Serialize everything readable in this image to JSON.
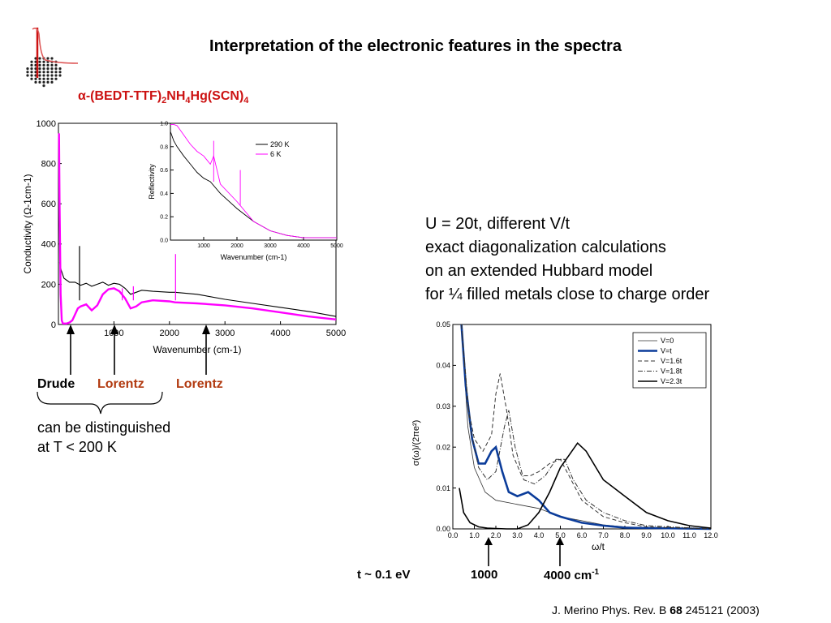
{
  "header": {
    "title": "Interpretation of the electronic features in the spectra",
    "compound": {
      "alpha": "α",
      "p1": "-(BEDT-TTF)",
      "s1": "2",
      "p2": "NH",
      "s2": "4",
      "p3": "Hg(SCN)",
      "s3": "4"
    }
  },
  "colors": {
    "title": "#000000",
    "compound": "#cc1111",
    "lorentz": "#b23a10",
    "low_temp": "#ff00ff",
    "room_temp": "#000000",
    "v_t": "#0b3c9a"
  },
  "description": {
    "line1": "U = 20t, different V/t",
    "line2": "exact diagonalization calculations",
    "line3": "on an extended Hubbard model",
    "line4": "for ¼ filled metals close to charge order"
  },
  "labels": {
    "drude": "Drude",
    "lorentz1": "Lorentz",
    "lorentz2": "Lorentz",
    "distinguish1": "can be distinguished",
    "distinguish2": "at T < 200 K",
    "t_energy": "t ~ 0.1 eV",
    "mark_1000": "1000",
    "mark_4000": "4000 cm",
    "mark_4000_sup": "-1"
  },
  "citation": {
    "pre": "J. Merino Phys. Rev. B ",
    "vol": "68",
    "post": " 245121 (2003)"
  },
  "chart_data": [
    {
      "type": "line",
      "id": "conductivity",
      "xlabel": "Wavenumber (cm-1)",
      "ylabel": "Conductivity (Ω-1cm-1)",
      "xlim": [
        0,
        5000
      ],
      "ylim": [
        0,
        1000
      ],
      "xticks": [
        1000,
        2000,
        3000,
        4000,
        5000
      ],
      "yticks": [
        0,
        200,
        400,
        600,
        800,
        1000
      ],
      "series": [
        {
          "name": "290 K",
          "color": "#000000",
          "x": [
            20,
            50,
            100,
            200,
            300,
            400,
            500,
            600,
            700,
            800,
            900,
            1000,
            1100,
            1200,
            1300,
            1400,
            1500,
            1700,
            2000,
            2100,
            2500,
            3000,
            3500,
            4000,
            4500,
            5000
          ],
          "y": [
            310,
            270,
            230,
            210,
            210,
            195,
            205,
            190,
            200,
            210,
            195,
            205,
            200,
            180,
            150,
            160,
            170,
            165,
            160,
            160,
            150,
            125,
            105,
            85,
            65,
            40
          ]
        },
        {
          "name": "6 K",
          "color": "#ff00ff",
          "x": [
            10,
            20,
            40,
            60,
            80,
            100,
            150,
            200,
            250,
            300,
            350,
            400,
            500,
            600,
            700,
            800,
            900,
            1000,
            1100,
            1200,
            1300,
            1400,
            1500,
            1700,
            2000,
            2100,
            2500,
            3000,
            3500,
            4000,
            4500,
            5000
          ],
          "y": [
            950,
            600,
            150,
            20,
            5,
            5,
            5,
            10,
            20,
            50,
            80,
            90,
            100,
            70,
            95,
            150,
            175,
            180,
            165,
            130,
            80,
            90,
            110,
            120,
            115,
            110,
            105,
            95,
            80,
            60,
            40,
            25
          ]
        }
      ],
      "spikes": [
        {
          "series": "290 K",
          "x": 380,
          "y": 390
        },
        {
          "series": "6 K",
          "x": 2110,
          "y": 350
        },
        {
          "series": "6 K",
          "x": 1350,
          "y": 190
        },
        {
          "series": "6 K",
          "x": 1150,
          "y": 180
        }
      ]
    },
    {
      "type": "line",
      "id": "reflectivity-inset",
      "xlabel": "Wavenumber (cm-1)",
      "ylabel": "Reflectivity",
      "xlim": [
        0,
        5000
      ],
      "ylim": [
        0,
        1.0
      ],
      "xticks": [
        1000,
        2000,
        3000,
        4000,
        5000
      ],
      "yticks": [
        0.0,
        0.2,
        0.4,
        0.6,
        0.8,
        1.0
      ],
      "series": [
        {
          "name": "290 K",
          "color": "#000000",
          "x": [
            0,
            100,
            200,
            400,
            600,
            800,
            1000,
            1200,
            1500,
            2000,
            2500,
            3000,
            3500,
            4000,
            4500,
            5000
          ],
          "y": [
            0.93,
            0.85,
            0.8,
            0.72,
            0.65,
            0.58,
            0.53,
            0.5,
            0.4,
            0.27,
            0.16,
            0.08,
            0.04,
            0.02,
            0.02,
            0.02
          ]
        },
        {
          "name": "6 K",
          "color": "#ff00ff",
          "x": [
            0,
            100,
            200,
            400,
            600,
            800,
            1000,
            1200,
            1300,
            1500,
            2000,
            2500,
            3000,
            3500,
            4000,
            4500,
            5000
          ],
          "y": [
            0.99,
            0.99,
            0.98,
            0.9,
            0.82,
            0.76,
            0.72,
            0.65,
            0.72,
            0.48,
            0.33,
            0.16,
            0.08,
            0.04,
            0.02,
            0.02,
            0.02
          ]
        }
      ],
      "legend": [
        "290 K",
        "6 K"
      ]
    },
    {
      "type": "line",
      "id": "hubbard",
      "xlabel": "ω/t",
      "ylabel": "σ(ω)/(2πe²)",
      "xlim": [
        0,
        12
      ],
      "ylim": [
        0,
        0.05
      ],
      "xticks": [
        0.0,
        1.0,
        2.0,
        3.0,
        4.0,
        5.0,
        6.0,
        7.0,
        8.0,
        9.0,
        10.0,
        11.0,
        12.0
      ],
      "yticks": [
        0.0,
        0.01,
        0.02,
        0.03,
        0.04,
        0.05
      ],
      "series": [
        {
          "name": "V=0",
          "style": "thin",
          "x": [
            0.4,
            0.7,
            1.0,
            1.5,
            2.0,
            3.0,
            4.0,
            5.0,
            6.0,
            7.0,
            8.0,
            9.0,
            10.0,
            12.0
          ],
          "y": [
            0.05,
            0.025,
            0.015,
            0.009,
            0.007,
            0.006,
            0.005,
            0.003,
            0.002,
            0.001,
            0.0005,
            0.0003,
            0.0001,
            0.0
          ]
        },
        {
          "name": "V=t",
          "style": "thick-blue",
          "x": [
            0.4,
            0.6,
            0.9,
            1.2,
            1.5,
            1.8,
            2.0,
            2.3,
            2.6,
            3.0,
            3.5,
            4.0,
            4.5,
            5.0,
            6.0,
            7.0,
            8.0,
            12.0
          ],
          "y": [
            0.05,
            0.035,
            0.022,
            0.016,
            0.016,
            0.019,
            0.02,
            0.014,
            0.009,
            0.008,
            0.009,
            0.007,
            0.004,
            0.003,
            0.0015,
            0.0008,
            0.0003,
            0.0
          ]
        },
        {
          "name": "V=1.6t",
          "style": "dashed",
          "x": [
            0.4,
            0.7,
            1.0,
            1.4,
            1.8,
            2.0,
            2.2,
            2.5,
            2.8,
            3.2,
            3.6,
            4.0,
            4.5,
            5.0,
            5.5,
            6.0,
            7.0,
            8.0,
            9.0,
            12.0
          ],
          "y": [
            0.05,
            0.03,
            0.022,
            0.019,
            0.023,
            0.033,
            0.038,
            0.029,
            0.018,
            0.013,
            0.013,
            0.014,
            0.016,
            0.017,
            0.012,
            0.007,
            0.003,
            0.0015,
            0.0005,
            0.0
          ]
        },
        {
          "name": "V=1.8t",
          "style": "thin-dashdot",
          "x": [
            0.4,
            0.8,
            1.2,
            1.6,
            2.0,
            2.4,
            2.6,
            2.9,
            3.3,
            3.8,
            4.3,
            4.8,
            5.2,
            5.6,
            6.2,
            7.0,
            8.0,
            9.0,
            12.0
          ],
          "y": [
            0.05,
            0.025,
            0.015,
            0.012,
            0.014,
            0.025,
            0.029,
            0.02,
            0.012,
            0.011,
            0.013,
            0.017,
            0.017,
            0.012,
            0.007,
            0.004,
            0.002,
            0.0008,
            0.0
          ]
        },
        {
          "name": "V=2.3t",
          "style": "medium",
          "x": [
            0.3,
            0.5,
            0.8,
            1.2,
            1.6,
            2.0,
            2.5,
            3.0,
            3.5,
            4.0,
            4.5,
            5.0,
            5.4,
            5.8,
            6.2,
            7.0,
            7.5,
            8.0,
            9.0,
            10.0,
            11.0,
            12.0
          ],
          "y": [
            0.01,
            0.004,
            0.0015,
            0.0005,
            0.0002,
            0.0001,
            0.0,
            0.0,
            0.001,
            0.004,
            0.009,
            0.015,
            0.018,
            0.021,
            0.019,
            0.012,
            0.01,
            0.008,
            0.004,
            0.002,
            0.0008,
            0.0002
          ]
        }
      ],
      "legend": [
        "V=0",
        "V=t",
        "V=1.6t",
        "V=1.8t",
        "V=2.3t"
      ]
    }
  ]
}
